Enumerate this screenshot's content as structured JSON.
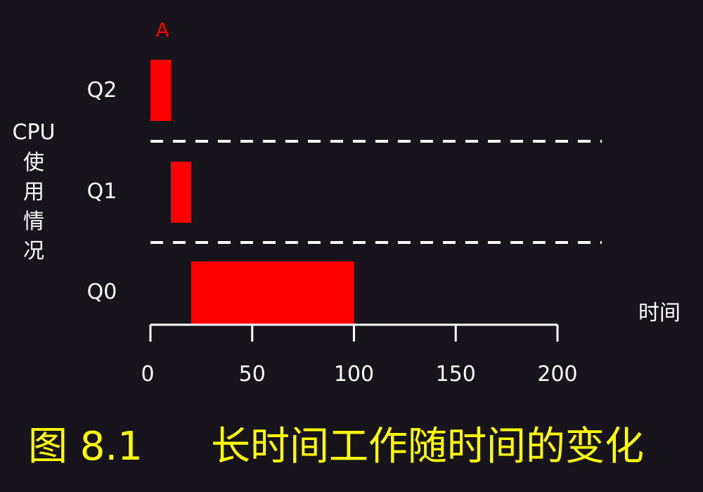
{
  "chart_data": {
    "type": "bar",
    "marker_label": "A",
    "ylabel_lines": [
      "CPU",
      "使",
      "用",
      "情",
      "况"
    ],
    "xlabel": "时间",
    "queues": [
      "Q2",
      "Q1",
      "Q0"
    ],
    "segments": [
      {
        "queue": "Q2",
        "start": 0,
        "end": 10
      },
      {
        "queue": "Q1",
        "start": 10,
        "end": 20
      },
      {
        "queue": "Q0",
        "start": 20,
        "end": 100
      }
    ],
    "xlim": [
      0,
      200
    ],
    "xticks": [
      0,
      50,
      100,
      150,
      200
    ],
    "bar_color": "#ff0000",
    "marker_color": "#ff0000",
    "text_color": "#ffffff"
  },
  "caption": {
    "figure": "图 8.1",
    "title": "长时间工作随时间的变化",
    "color": "#ffff00"
  }
}
